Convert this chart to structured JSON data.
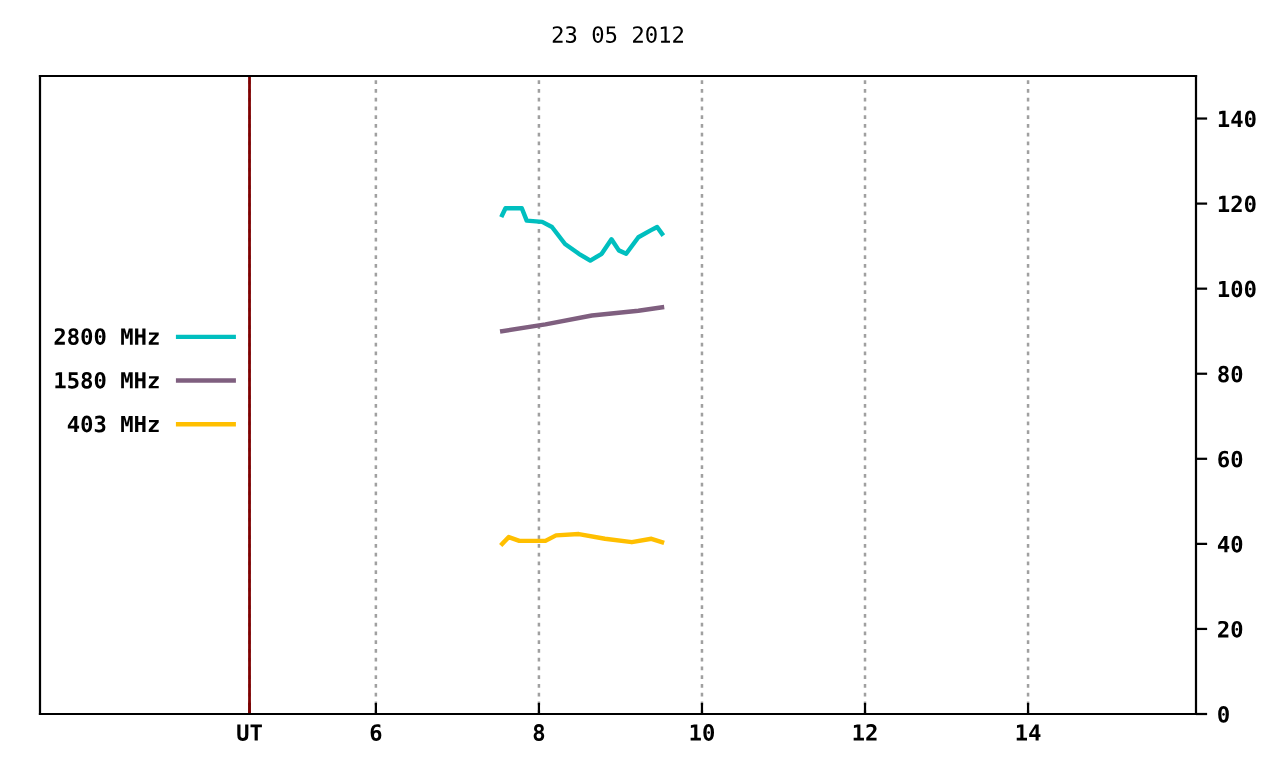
{
  "chart_data": {
    "type": "line",
    "title": "23 05 2012",
    "xlim": [
      1.88,
      16.06
    ],
    "ylim": [
      0,
      150
    ],
    "xticks": [
      {
        "value": 4.45,
        "label": "UT"
      },
      6,
      8,
      10,
      12,
      14
    ],
    "yticks": [
      0,
      20,
      40,
      60,
      80,
      100,
      120,
      140
    ],
    "grid": "x",
    "legend": "left",
    "line_style": "solid",
    "marker": "none",
    "ref_lines": [
      {
        "axis": "x",
        "value": 4.45,
        "label": null,
        "color": "#7f0000"
      }
    ],
    "series": [
      {
        "name": "2800 MHz",
        "color": "#00bfbf",
        "x": [
          7.55,
          7.59,
          7.79,
          7.85,
          8.04,
          8.16,
          8.32,
          8.49,
          8.63,
          8.77,
          8.89,
          8.98,
          9.07,
          9.22,
          9.37,
          9.45,
          9.51
        ],
        "values": [
          117.3,
          118.9,
          118.9,
          116.0,
          115.7,
          114.5,
          110.5,
          108.2,
          106.6,
          108.2,
          111.6,
          109.0,
          108.2,
          112.1,
          113.7,
          114.5,
          112.9
        ]
      },
      {
        "name": "1580 MHz",
        "color": "#7f5f7f",
        "x": [
          7.55,
          8.08,
          8.65,
          9.22,
          9.51
        ],
        "values": [
          90.0,
          91.6,
          93.7,
          94.8,
          95.6
        ]
      },
      {
        "name": "403 MHz",
        "color": "#ffbf00",
        "x": [
          7.55,
          7.63,
          7.76,
          8.08,
          8.21,
          8.49,
          8.81,
          9.14,
          9.38,
          9.51
        ],
        "values": [
          40.0,
          41.6,
          40.7,
          40.7,
          42.0,
          42.3,
          41.2,
          40.4,
          41.2,
          40.4
        ]
      }
    ]
  }
}
